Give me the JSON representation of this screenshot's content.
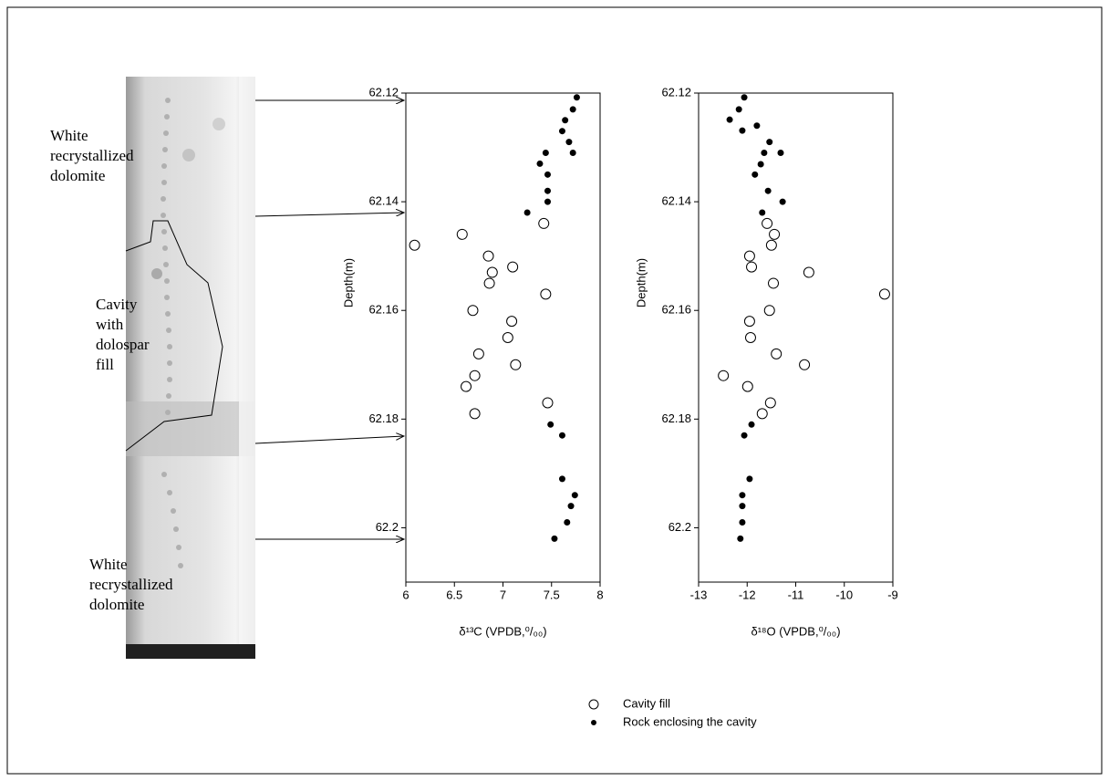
{
  "photo_labels": [
    [
      "White",
      "recrystallized",
      "dolomite"
    ],
    [
      "Cavity",
      "with",
      "dolospar",
      "fill"
    ],
    [
      "White",
      "recrystallized",
      "dolomite"
    ]
  ],
  "chart_data": [
    {
      "type": "scatter",
      "x_label": "δ¹³C (VPDB,⁰/₀₀)",
      "y_label": "Depth(m)",
      "xlim": [
        6,
        8
      ],
      "xticks": [
        6,
        6.5,
        7,
        7.5,
        8
      ],
      "ylim": [
        62.21,
        62.12
      ],
      "yticks": [
        62.12,
        62.14,
        62.16,
        62.18,
        62.2
      ],
      "series": [
        {
          "name": "Cavity fill",
          "marker": "open",
          "color": "#000000",
          "x": [
            7.42,
            6.58,
            6.09,
            6.85,
            7.1,
            6.89,
            6.86,
            7.44,
            6.69,
            7.09,
            7.05,
            6.75,
            7.13,
            6.71,
            6.62,
            7.46,
            6.71
          ],
          "y": [
            62.144,
            62.146,
            62.148,
            62.15,
            62.152,
            62.153,
            62.155,
            62.157,
            62.16,
            62.162,
            62.165,
            62.168,
            62.17,
            62.172,
            62.174,
            62.177,
            62.179
          ]
        },
        {
          "name": "Rock enclosing the cavity",
          "marker": "filled",
          "color": "#000000",
          "x": [
            7.76,
            7.72,
            7.64,
            7.61,
            7.68,
            7.44,
            7.72,
            7.38,
            7.46,
            7.46,
            7.46,
            7.25,
            7.49,
            7.61,
            7.61,
            7.74,
            7.7,
            7.66,
            7.53
          ],
          "y": [
            62.1208,
            62.123,
            62.125,
            62.127,
            62.129,
            62.131,
            62.131,
            62.133,
            62.135,
            62.138,
            62.14,
            62.142,
            62.181,
            62.183,
            62.191,
            62.194,
            62.196,
            62.199,
            62.202
          ]
        }
      ]
    },
    {
      "type": "scatter",
      "x_label": "δ¹⁸O (VPDB,⁰/₀₀)",
      "y_label": "Depth(m)",
      "xlim": [
        -13,
        -9
      ],
      "xticks": [
        -13,
        -12,
        -11,
        -10,
        -9
      ],
      "ylim": [
        62.21,
        62.12
      ],
      "yticks": [
        62.12,
        62.14,
        62.16,
        62.18,
        62.2
      ],
      "series": [
        {
          "marker": "open",
          "color": "#000000",
          "x": [
            -11.59,
            -11.44,
            -11.5,
            -11.95,
            -11.91,
            -10.73,
            -11.46,
            -9.17,
            -11.54,
            -11.95,
            -11.93,
            -11.4,
            -10.82,
            -12.49,
            -11.99,
            -11.52,
            -11.69
          ],
          "y": [
            62.144,
            62.146,
            62.148,
            62.15,
            62.152,
            62.153,
            62.155,
            62.157,
            62.16,
            62.162,
            62.165,
            62.168,
            62.17,
            62.172,
            62.174,
            62.177,
            62.179
          ]
        },
        {
          "marker": "filled",
          "color": "#000000",
          "x": [
            -12.06,
            -12.17,
            -12.36,
            -11.8,
            -12.1,
            -11.54,
            -11.65,
            -11.31,
            -11.72,
            -11.84,
            -11.57,
            -11.27,
            -11.69,
            -11.91,
            -12.06,
            -11.95,
            -12.1,
            -12.1,
            -12.1,
            -12.14
          ],
          "y": [
            62.1208,
            62.123,
            62.1249,
            62.126,
            62.1269,
            62.129,
            62.131,
            62.131,
            62.1331,
            62.135,
            62.138,
            62.14,
            62.142,
            62.181,
            62.183,
            62.191,
            62.194,
            62.196,
            62.199,
            62.202
          ]
        }
      ]
    }
  ]
}
